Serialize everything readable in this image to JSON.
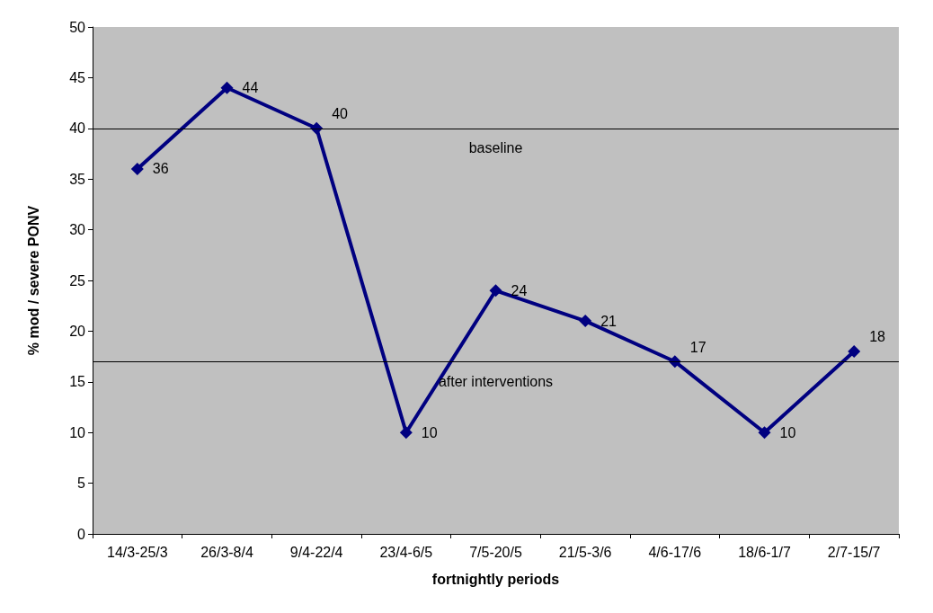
{
  "chart_data": {
    "type": "line",
    "xlabel": "fortnightly periods",
    "ylabel": "% mod / severe PONV",
    "categories": [
      "14/3-25/3",
      "26/3-8/4",
      "9/4-22/4",
      "23/4-6/5",
      "7/5-20/5",
      "21/5-3/6",
      "4/6-17/6",
      "18/6-1/7",
      "2/7-15/7"
    ],
    "series": [
      {
        "color": "#000080",
        "values": [
          36,
          44,
          40,
          10,
          24,
          21,
          17,
          10,
          18
        ]
      }
    ],
    "ylim": [
      0,
      50
    ],
    "yticks": [
      0,
      5,
      10,
      15,
      20,
      25,
      30,
      35,
      40,
      45,
      50
    ],
    "ref_lines": [
      {
        "axis": "y",
        "value": 40,
        "label": "baseline",
        "color": "#000000"
      },
      {
        "axis": "y",
        "value": 17,
        "label": "after interventions",
        "color": "#000000"
      }
    ],
    "data_labels": true,
    "grid": false,
    "marker": "diamond",
    "line_style": "solid"
  }
}
